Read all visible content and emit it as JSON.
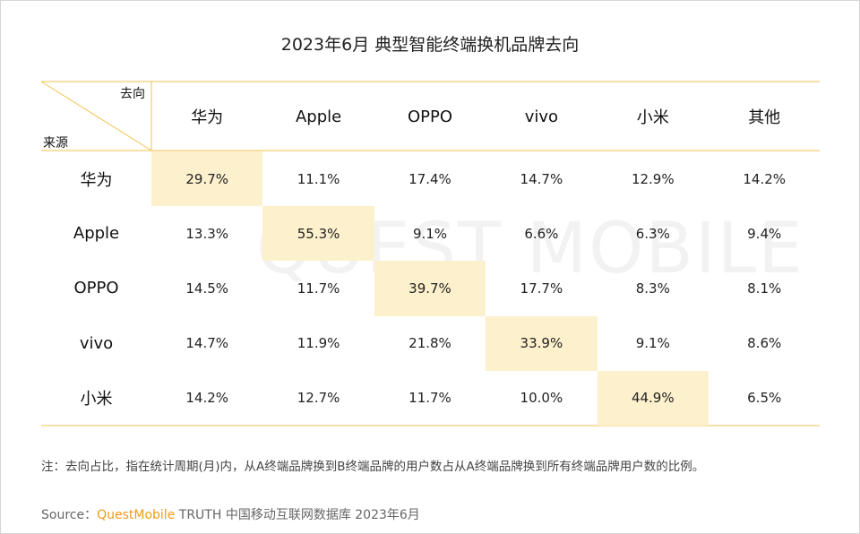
{
  "header": {
    "title": "2023年6月 典型智能终端换机品牌去向"
  },
  "watermark": "QUEST MOBILE",
  "table": {
    "corner_top": "去向",
    "corner_bottom": "来源",
    "columns": [
      "华为",
      "Apple",
      "OPPO",
      "vivo",
      "小米",
      "其他"
    ],
    "rows": [
      [
        "华为",
        "29.7%",
        "11.1%",
        "17.4%",
        "14.7%",
        "12.9%",
        "14.2%"
      ],
      [
        "Apple",
        "13.3%",
        "55.3%",
        "9.1%",
        "6.6%",
        "6.3%",
        "9.4%"
      ],
      [
        "OPPO",
        "14.5%",
        "11.7%",
        "39.7%",
        "17.7%",
        "8.3%",
        "8.1%"
      ],
      [
        "vivo",
        "14.7%",
        "11.9%",
        "21.8%",
        "33.9%",
        "9.1%",
        "8.6%"
      ],
      [
        "小米",
        "14.2%",
        "12.7%",
        "11.7%",
        "10.0%",
        "44.9%",
        "6.5%"
      ]
    ]
  },
  "note": "注：去向占比，指在统计周期(月)内，从A终端品牌换到B终端品牌的用户数占从A终端品牌换到所有终端品牌用户数的比例。",
  "source": {
    "label": "Source：",
    "brand": "QuestMobile",
    "text": "TRUTH 中国移动互联网数据库 2023年6月"
  }
}
